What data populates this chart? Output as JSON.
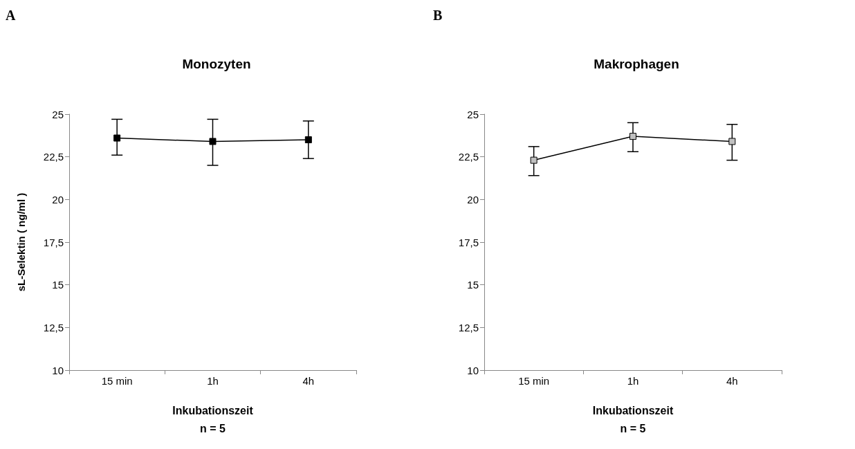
{
  "chart_data": [
    {
      "type": "line",
      "title": "Monozyten",
      "xlabel": "Inkubationszeit\nn = 5",
      "ylabel": "sL-Selektin ( ng/ml )",
      "annotations": [
        "A"
      ],
      "categories": [
        "15 min",
        "1h",
        "4h"
      ],
      "series": [
        {
          "color": "#000000",
          "values": [
            23.6,
            23.4,
            23.5
          ],
          "errors": [
            [
              22.6,
              24.7
            ],
            [
              22.0,
              24.7
            ],
            [
              22.4,
              24.6
            ]
          ]
        }
      ],
      "ylim": [
        10,
        25
      ],
      "yticks": [
        10,
        {
          "value": 12.5,
          "label": "12,5"
        },
        15,
        {
          "value": 17.5,
          "label": "17,5"
        },
        20,
        {
          "value": 22.5,
          "label": "22,5"
        },
        25
      ],
      "grid": false,
      "marker": "square",
      "line_style": "solid"
    },
    {
      "type": "line",
      "title": "Makrophagen",
      "xlabel": "Inkubationszeit\nn = 5",
      "annotations": [
        "B"
      ],
      "categories": [
        "15 min",
        "1h",
        "4h"
      ],
      "series": [
        {
          "color": "#c0c0c0",
          "values": [
            22.3,
            23.7,
            23.4
          ],
          "errors": [
            [
              21.4,
              23.1
            ],
            [
              22.8,
              24.5
            ],
            [
              22.3,
              24.4
            ]
          ]
        }
      ],
      "ylim": [
        10,
        25
      ],
      "yticks": [
        10,
        {
          "value": 12.5,
          "label": "12,5"
        },
        15,
        {
          "value": 17.5,
          "label": "17,5"
        },
        20,
        {
          "value": 22.5,
          "label": "22,5"
        },
        25
      ],
      "grid": false,
      "marker": "square",
      "line_style": "solid"
    }
  ]
}
